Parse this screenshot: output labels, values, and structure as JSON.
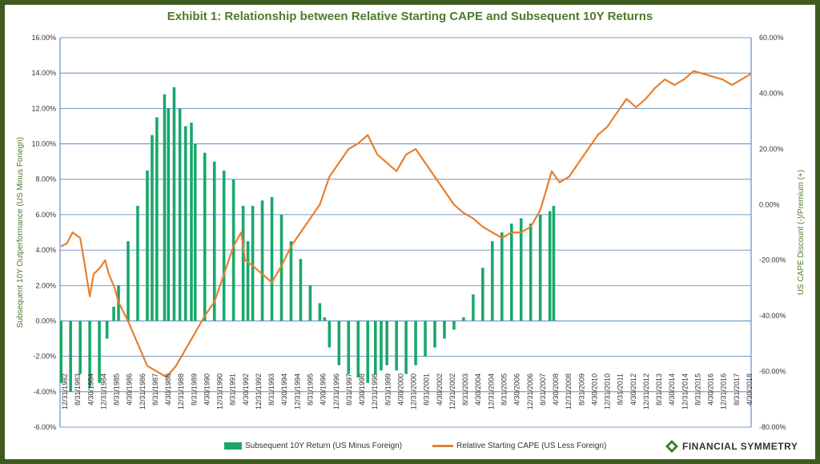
{
  "chart_data": {
    "type": "bar+line",
    "title": "Exhibit 1: Relationship between Relative Starting CAPE and Subsequent 10Y Returns",
    "ylabel": "Subsequent 10Y Outperformance (US Minus Foriegn)",
    "y2label": "US CAPE Discount (-)/Premium (+)",
    "ylim": [
      -6,
      16
    ],
    "y2lim": [
      -80,
      60
    ],
    "yticks": [
      "16.00%",
      "14.00%",
      "12.00%",
      "10.00%",
      "8.00%",
      "6.00%",
      "4.00%",
      "2.00%",
      "0.00%",
      "-2.00%",
      "-4.00%",
      "-6.00%"
    ],
    "y2ticks": [
      "60.00%",
      "40.00%",
      "20.00%",
      "0.00%",
      "-20.00%",
      "-40.00%",
      "-60.00%",
      "-80.00%"
    ],
    "x_range": [
      1982.95,
      2019.0
    ],
    "xticks": [
      "12/31/1982",
      "8/31/1983",
      "4/30/1984",
      "12/31/1984",
      "8/31/1985",
      "4/30/1986",
      "12/31/1986",
      "8/31/1987",
      "4/30/1988",
      "12/31/1988",
      "8/31/1989",
      "4/30/1990",
      "12/31/1990",
      "8/31/1991",
      "4/30/1992",
      "12/31/1992",
      "8/31/1993",
      "4/30/1994",
      "12/31/1994",
      "8/31/1995",
      "4/30/1996",
      "12/31/1996",
      "8/31/1997",
      "4/30/1998",
      "12/31/1998",
      "8/31/1999",
      "4/30/2000",
      "12/31/2000",
      "8/31/2001",
      "4/30/2002",
      "12/31/2002",
      "8/31/2003",
      "4/30/2004",
      "12/31/2004",
      "8/31/2005",
      "4/30/2006",
      "12/31/2006",
      "8/31/2007",
      "4/30/2008",
      "12/31/2008",
      "8/31/2009",
      "4/30/2010",
      "12/31/2010",
      "8/31/2011",
      "4/30/2012",
      "12/31/2012",
      "8/31/2013",
      "4/30/2014",
      "12/31/2014",
      "8/31/2015",
      "4/30/2016",
      "12/31/2016",
      "8/31/2017",
      "4/30/2018"
    ],
    "series": [
      {
        "name": "Subsequent 10Y Return (US Minus Foreign)",
        "type": "bar",
        "axis": "left",
        "color": "#1aa86a",
        "x": [
          1983.0,
          1983.5,
          1984.0,
          1984.5,
          1985.0,
          1985.4,
          1985.75,
          1986.0,
          1986.5,
          1987.0,
          1987.5,
          1987.75,
          1988.0,
          1988.4,
          1988.6,
          1988.9,
          1989.2,
          1989.5,
          1989.8,
          1990.0,
          1990.5,
          1991.0,
          1991.5,
          1992.0,
          1992.5,
          1992.75,
          1993.0,
          1993.5,
          1994.0,
          1994.5,
          1995.0,
          1995.5,
          1996.0,
          1996.5,
          1996.75,
          1997.0,
          1997.5,
          1998.0,
          1998.5,
          1999.0,
          1999.4,
          1999.7,
          2000.0,
          2000.5,
          2001.0,
          2001.5,
          2002.0,
          2002.5,
          2003.0,
          2003.5,
          2004.0,
          2004.5,
          2005.0,
          2005.5,
          2006.0,
          2006.5,
          2007.0,
          2007.5,
          2008.0,
          2008.5,
          2008.7
        ],
        "values": [
          -3.5,
          -4.0,
          -3.0,
          -3.8,
          -3.5,
          -1.0,
          0.8,
          2.0,
          4.5,
          6.5,
          8.5,
          10.5,
          11.5,
          12.8,
          12.0,
          13.2,
          12.0,
          11.0,
          11.2,
          10.0,
          9.5,
          9.0,
          8.5,
          8.0,
          6.5,
          4.5,
          6.5,
          6.8,
          7.0,
          6.0,
          4.5,
          3.5,
          2.0,
          1.0,
          0.2,
          -1.5,
          -2.5,
          -3.0,
          -3.2,
          -3.5,
          -3.0,
          -2.8,
          -2.5,
          -2.8,
          -3.0,
          -2.5,
          -2.0,
          -1.5,
          -1.0,
          -0.5,
          0.2,
          1.5,
          3.0,
          4.5,
          5.0,
          5.5,
          5.8,
          5.5,
          6.0,
          6.2,
          6.5
        ]
      },
      {
        "name": "Relative Starting CAPE (US Less Foreign)",
        "type": "line",
        "axis": "right",
        "color": "#e6802f",
        "x": [
          1983.0,
          1983.3,
          1983.6,
          1984.0,
          1984.2,
          1984.5,
          1984.7,
          1985.0,
          1985.3,
          1985.5,
          1985.8,
          1986.0,
          1986.5,
          1987.0,
          1987.5,
          1988.0,
          1988.5,
          1989.0,
          1989.5,
          1990.0,
          1990.5,
          1991.0,
          1991.5,
          1992.0,
          1992.4,
          1992.6,
          1993.0,
          1993.5,
          1994.0,
          1994.5,
          1995.0,
          1995.5,
          1996.0,
          1996.5,
          1997.0,
          1997.5,
          1998.0,
          1998.5,
          1999.0,
          1999.5,
          2000.0,
          2000.5,
          2001.0,
          2001.5,
          2002.0,
          2002.5,
          2003.0,
          2003.5,
          2004.0,
          2004.5,
          2005.0,
          2005.5,
          2006.0,
          2006.5,
          2007.0,
          2007.5,
          2008.0,
          2008.3,
          2008.6,
          2009.0,
          2009.5,
          2010.0,
          2010.5,
          2011.0,
          2011.5,
          2012.0,
          2012.5,
          2013.0,
          2013.5,
          2014.0,
          2014.5,
          2015.0,
          2015.5,
          2016.0,
          2016.5,
          2017.0,
          2017.5,
          2018.0,
          2018.5,
          2019.0
        ],
        "values": [
          -15,
          -14,
          -10,
          -12,
          -20,
          -33,
          -25,
          -23,
          -20,
          -25,
          -30,
          -35,
          -42,
          -50,
          -58,
          -60,
          -62,
          -58,
          -52,
          -46,
          -40,
          -35,
          -25,
          -15,
          -10,
          -20,
          -22,
          -25,
          -28,
          -22,
          -15,
          -10,
          -5,
          0,
          10,
          15,
          20,
          22,
          25,
          18,
          15,
          12,
          18,
          20,
          15,
          10,
          5,
          0,
          -3,
          -5,
          -8,
          -10,
          -12,
          -10,
          -10,
          -8,
          -2,
          5,
          12,
          8,
          10,
          15,
          20,
          25,
          28,
          33,
          38,
          35,
          38,
          42,
          45,
          43,
          45,
          48,
          47,
          46,
          45,
          43,
          45,
          47
        ]
      }
    ]
  },
  "legend": {
    "bar_label": "Subsequent 10Y Return (US Minus Foreign)",
    "line_label": "Relative Starting CAPE (US Less Foreign)"
  },
  "logo": {
    "text": "Financial Symmetry"
  },
  "colors": {
    "frame": "#3f5a1f",
    "title": "#4f7a28",
    "bar": "#1aa86a",
    "line": "#e6802f",
    "grid": "#4a78b5"
  }
}
